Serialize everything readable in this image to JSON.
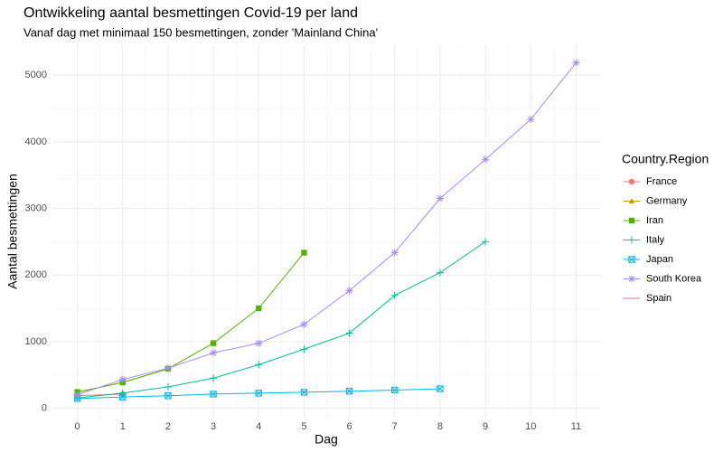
{
  "chart_data": {
    "type": "line",
    "title": "Ontwikkeling aantal besmettingen Covid-19 per land",
    "subtitle": "Vanaf dag met minimaal 150 besmettingen, zonder 'Mainland China'",
    "x_label": "Dag",
    "y_label": "Aantal besmettingen",
    "legend_title": "Country.Region",
    "x": [
      0,
      1,
      2,
      3,
      4,
      5,
      6,
      7,
      8,
      9,
      10,
      11
    ],
    "series": [
      {
        "name": "France",
        "color": "#F8766D",
        "marker": "circle",
        "values": [
          191,
          212,
          null,
          null,
          null,
          null,
          null,
          null,
          null,
          null,
          null,
          null
        ]
      },
      {
        "name": "Germany",
        "color": "#C49A00",
        "marker": "triangle",
        "values": [
          240,
          390,
          590,
          null,
          null,
          null,
          null,
          null,
          null,
          null,
          null,
          null
        ]
      },
      {
        "name": "Iran",
        "color": "#53B400",
        "marker": "square",
        "values": [
          245,
          388,
          593,
          978,
          1501,
          2336,
          null,
          null,
          null,
          null,
          null,
          null
        ]
      },
      {
        "name": "Italy",
        "color": "#00C094",
        "marker": "plus",
        "values": [
          155,
          229,
          322,
          453,
          655,
          888,
          1128,
          1694,
          2036,
          2502,
          null,
          null
        ]
      },
      {
        "name": "Japan",
        "color": "#00B6EB",
        "marker": "boxx",
        "values": [
          147,
          170,
          189,
          214,
          228,
          241,
          256,
          274,
          293,
          null,
          null,
          null
        ]
      },
      {
        "name": "South Korea",
        "color": "#A58AFF",
        "marker": "asterisk",
        "values": [
          204,
          433,
          602,
          833,
          977,
          1261,
          1766,
          2337,
          3150,
          3736,
          4335,
          5186
        ]
      },
      {
        "name": "Spain",
        "color": "#FB61D7",
        "values": [
          null,
          null,
          null,
          null,
          null,
          null,
          null,
          null,
          null,
          null,
          null,
          null
        ]
      }
    ],
    "xlim": [
      -0.55,
      11.55
    ],
    "xticks": [
      0,
      1,
      2,
      3,
      4,
      5,
      6,
      7,
      8,
      9,
      10,
      11
    ],
    "ylim": [
      -140,
      5450
    ],
    "yticks": [
      0,
      1000,
      2000,
      3000,
      4000,
      5000
    ],
    "grid": true,
    "legend": "right"
  }
}
